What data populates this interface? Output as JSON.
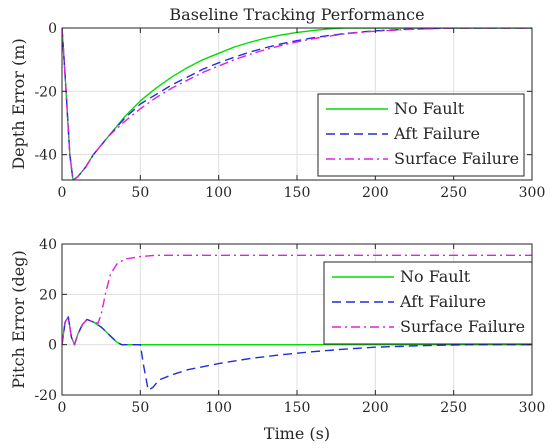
{
  "chart_data": [
    {
      "type": "line",
      "title": "Baseline Tracking Performance",
      "xlabel": "",
      "ylabel": "Depth Error (m)",
      "xlim": [
        0,
        300
      ],
      "ylim": [
        -48,
        0
      ],
      "xticks": [
        0,
        50,
        100,
        150,
        200,
        250,
        300
      ],
      "yticks": [
        -40,
        -20,
        0
      ],
      "grid": true,
      "legend_position": "lower-right",
      "series": [
        {
          "name": "No Fault",
          "color": "#00dd00",
          "dash": "solid",
          "points": [
            [
              0,
              0
            ],
            [
              2,
              -15
            ],
            [
              5,
              -40
            ],
            [
              7,
              -48
            ],
            [
              10,
              -47
            ],
            [
              15,
              -44
            ],
            [
              20,
              -40
            ],
            [
              30,
              -34
            ],
            [
              40,
              -28
            ],
            [
              50,
              -23
            ],
            [
              60,
              -19
            ],
            [
              70,
              -15.5
            ],
            [
              80,
              -12.5
            ],
            [
              90,
              -10
            ],
            [
              100,
              -8
            ],
            [
              110,
              -6
            ],
            [
              120,
              -4.5
            ],
            [
              130,
              -3.2
            ],
            [
              140,
              -2.2
            ],
            [
              150,
              -1.4
            ],
            [
              160,
              -0.8
            ],
            [
              170,
              -0.3
            ],
            [
              180,
              0
            ],
            [
              200,
              0
            ],
            [
              250,
              0
            ],
            [
              300,
              0
            ]
          ]
        },
        {
          "name": "Aft Failure",
          "color": "#1f2fd8",
          "dash": "dashed",
          "points": [
            [
              0,
              0
            ],
            [
              2,
              -15
            ],
            [
              5,
              -40
            ],
            [
              7,
              -48
            ],
            [
              10,
              -47
            ],
            [
              15,
              -44
            ],
            [
              20,
              -40
            ],
            [
              30,
              -34
            ],
            [
              40,
              -28.5
            ],
            [
              50,
              -24
            ],
            [
              60,
              -21
            ],
            [
              70,
              -18
            ],
            [
              80,
              -15.5
            ],
            [
              90,
              -13
            ],
            [
              100,
              -11
            ],
            [
              110,
              -9.2
            ],
            [
              120,
              -7.6
            ],
            [
              130,
              -6.2
            ],
            [
              140,
              -5
            ],
            [
              150,
              -4
            ],
            [
              160,
              -3.1
            ],
            [
              170,
              -2.4
            ],
            [
              180,
              -1.8
            ],
            [
              190,
              -1.3
            ],
            [
              200,
              -0.9
            ],
            [
              220,
              -0.4
            ],
            [
              250,
              0
            ],
            [
              300,
              0
            ]
          ]
        },
        {
          "name": "Surface Failure",
          "color": "#e020e0",
          "dash": "dashdot",
          "points": [
            [
              0,
              0
            ],
            [
              2,
              -15
            ],
            [
              5,
              -40
            ],
            [
              7,
              -48
            ],
            [
              10,
              -47
            ],
            [
              15,
              -44
            ],
            [
              20,
              -40
            ],
            [
              30,
              -34
            ],
            [
              40,
              -29.5
            ],
            [
              50,
              -25.5
            ],
            [
              60,
              -22
            ],
            [
              70,
              -19
            ],
            [
              80,
              -16.5
            ],
            [
              90,
              -14
            ],
            [
              100,
              -12
            ],
            [
              110,
              -10
            ],
            [
              120,
              -8.3
            ],
            [
              130,
              -6.8
            ],
            [
              140,
              -5.5
            ],
            [
              150,
              -4.4
            ],
            [
              160,
              -3.4
            ],
            [
              170,
              -2.6
            ],
            [
              180,
              -1.9
            ],
            [
              190,
              -1.4
            ],
            [
              200,
              -1
            ],
            [
              220,
              -0.5
            ],
            [
              250,
              0
            ],
            [
              300,
              0
            ]
          ]
        }
      ]
    },
    {
      "type": "line",
      "title": "",
      "xlabel": "Time (s)",
      "ylabel": "Pitch Error (deg)",
      "xlim": [
        0,
        300
      ],
      "ylim": [
        -20,
        40
      ],
      "xticks": [
        0,
        50,
        100,
        150,
        200,
        250,
        300
      ],
      "yticks": [
        -20,
        0,
        20,
        40
      ],
      "grid": true,
      "legend_position": "upper-right",
      "series": [
        {
          "name": "No Fault",
          "color": "#00dd00",
          "dash": "solid",
          "points": [
            [
              0,
              0
            ],
            [
              2,
              9
            ],
            [
              4,
              11
            ],
            [
              6,
              3
            ],
            [
              8,
              0
            ],
            [
              10,
              4
            ],
            [
              13,
              8
            ],
            [
              16,
              10
            ],
            [
              20,
              9
            ],
            [
              25,
              7
            ],
            [
              30,
              4
            ],
            [
              35,
              1
            ],
            [
              38,
              0
            ],
            [
              50,
              0
            ],
            [
              100,
              0
            ],
            [
              200,
              0
            ],
            [
              300,
              0
            ]
          ]
        },
        {
          "name": "Aft Failure",
          "color": "#1f2fd8",
          "dash": "dashed",
          "points": [
            [
              0,
              0
            ],
            [
              2,
              9
            ],
            [
              4,
              11
            ],
            [
              6,
              3
            ],
            [
              8,
              0
            ],
            [
              10,
              4
            ],
            [
              13,
              8
            ],
            [
              16,
              10
            ],
            [
              20,
              9
            ],
            [
              25,
              7
            ],
            [
              30,
              4
            ],
            [
              35,
              1
            ],
            [
              38,
              0
            ],
            [
              50,
              0
            ],
            [
              52,
              -8
            ],
            [
              55,
              -18
            ],
            [
              58,
              -17
            ],
            [
              62,
              -14
            ],
            [
              70,
              -12
            ],
            [
              80,
              -10
            ],
            [
              100,
              -7.5
            ],
            [
              120,
              -5.5
            ],
            [
              140,
              -4
            ],
            [
              160,
              -2.8
            ],
            [
              180,
              -1.8
            ],
            [
              200,
              -1
            ],
            [
              230,
              -0.4
            ],
            [
              260,
              0
            ],
            [
              300,
              0
            ]
          ]
        },
        {
          "name": "Surface Failure",
          "color": "#e020e0",
          "dash": "dashdot",
          "points": [
            [
              0,
              0
            ],
            [
              2,
              9
            ],
            [
              4,
              11
            ],
            [
              6,
              3
            ],
            [
              8,
              0
            ],
            [
              10,
              4
            ],
            [
              13,
              8
            ],
            [
              16,
              10
            ],
            [
              20,
              9
            ],
            [
              23,
              8.5
            ],
            [
              25,
              12
            ],
            [
              28,
              21
            ],
            [
              31,
              28
            ],
            [
              35,
              32
            ],
            [
              40,
              34
            ],
            [
              50,
              35
            ],
            [
              60,
              35.5
            ],
            [
              100,
              35.5
            ],
            [
              200,
              35.5
            ],
            [
              300,
              35.5
            ]
          ]
        }
      ]
    }
  ]
}
